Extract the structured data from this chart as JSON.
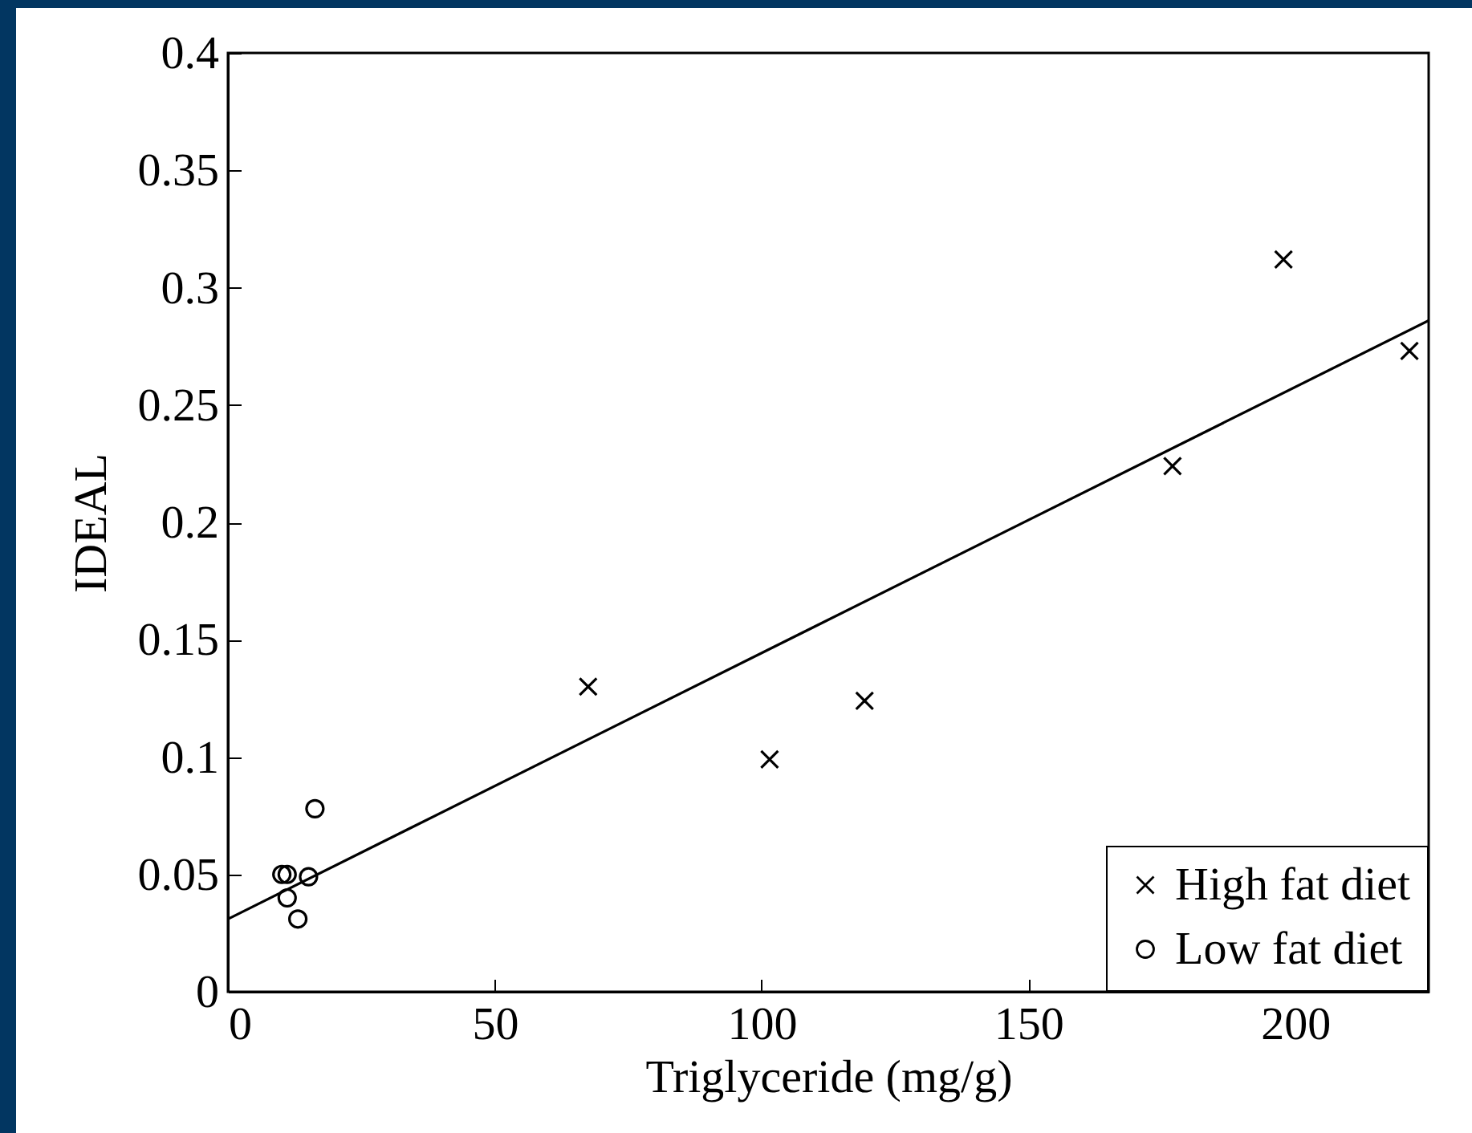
{
  "chart_data": {
    "type": "scatter",
    "xlabel": "Triglyceride (mg/g)",
    "ylabel": "IDEAL",
    "xlim": [
      0,
      225
    ],
    "xticks": [
      0,
      50,
      100,
      150,
      200
    ],
    "ylim": [
      0,
      0.4
    ],
    "yticks": [
      0,
      0.05,
      0.1,
      0.15,
      0.2,
      0.25,
      0.3,
      0.35,
      0.4
    ],
    "legend": "bottom right",
    "series": [
      {
        "name": "High fat diet",
        "type": "scatter",
        "marker": "cross",
        "color": "#000000",
        "x": [
          67.5,
          101.5,
          119.3,
          177,
          197.8,
          221.4
        ],
        "values": [
          0.13,
          0.099,
          0.124,
          0.224,
          0.312,
          0.273
        ]
      },
      {
        "name": "Low fat diet",
        "type": "scatter",
        "marker": "circle",
        "color": "#000000",
        "x": [
          16.3,
          10.1,
          11.1,
          15.1,
          11.1,
          13.1
        ],
        "values": [
          0.078,
          0.05,
          0.05,
          0.049,
          0.04,
          0.031
        ]
      },
      {
        "type": "line",
        "color": "#000000",
        "line_style": "solid",
        "x": [
          0,
          225
        ],
        "values": [
          0.031,
          0.286
        ]
      }
    ]
  }
}
